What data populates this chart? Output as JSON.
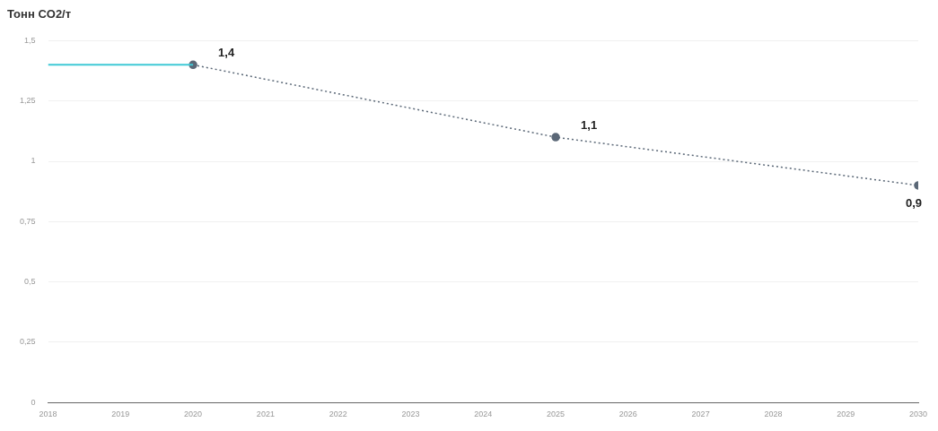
{
  "chart_data": {
    "type": "line",
    "ylabel": "Тонн CO2/т",
    "xlim": [
      2018,
      2030
    ],
    "xticks": [
      2018,
      2019,
      2020,
      2021,
      2022,
      2023,
      2024,
      2025,
      2026,
      2027,
      2028,
      2029,
      2030
    ],
    "ylim": [
      0,
      1.5
    ],
    "yticks": [
      {
        "value": 0,
        "label": "0"
      },
      {
        "value": 0.25,
        "label": "0,25"
      },
      {
        "value": 0.5,
        "label": "0,5"
      },
      {
        "value": 0.75,
        "label": "0,75"
      },
      {
        "value": 1,
        "label": "1"
      },
      {
        "value": 1.25,
        "label": "1,25"
      },
      {
        "value": 1.5,
        "label": "1,5"
      }
    ],
    "grid": "y",
    "legend": false,
    "series": [
      {
        "color": "#3fc9d6",
        "x": [
          2018,
          2020
        ],
        "values": [
          1.4,
          1.4
        ],
        "line_style": "solid",
        "marker": "none"
      },
      {
        "color": "#5b6877",
        "x": [
          2020,
          2025,
          2030
        ],
        "values": [
          1.4,
          1.1,
          0.9
        ],
        "line_style": "dotted",
        "marker": "circle",
        "value_labels": [
          "1,4",
          "1,1",
          "0,9"
        ]
      }
    ]
  }
}
